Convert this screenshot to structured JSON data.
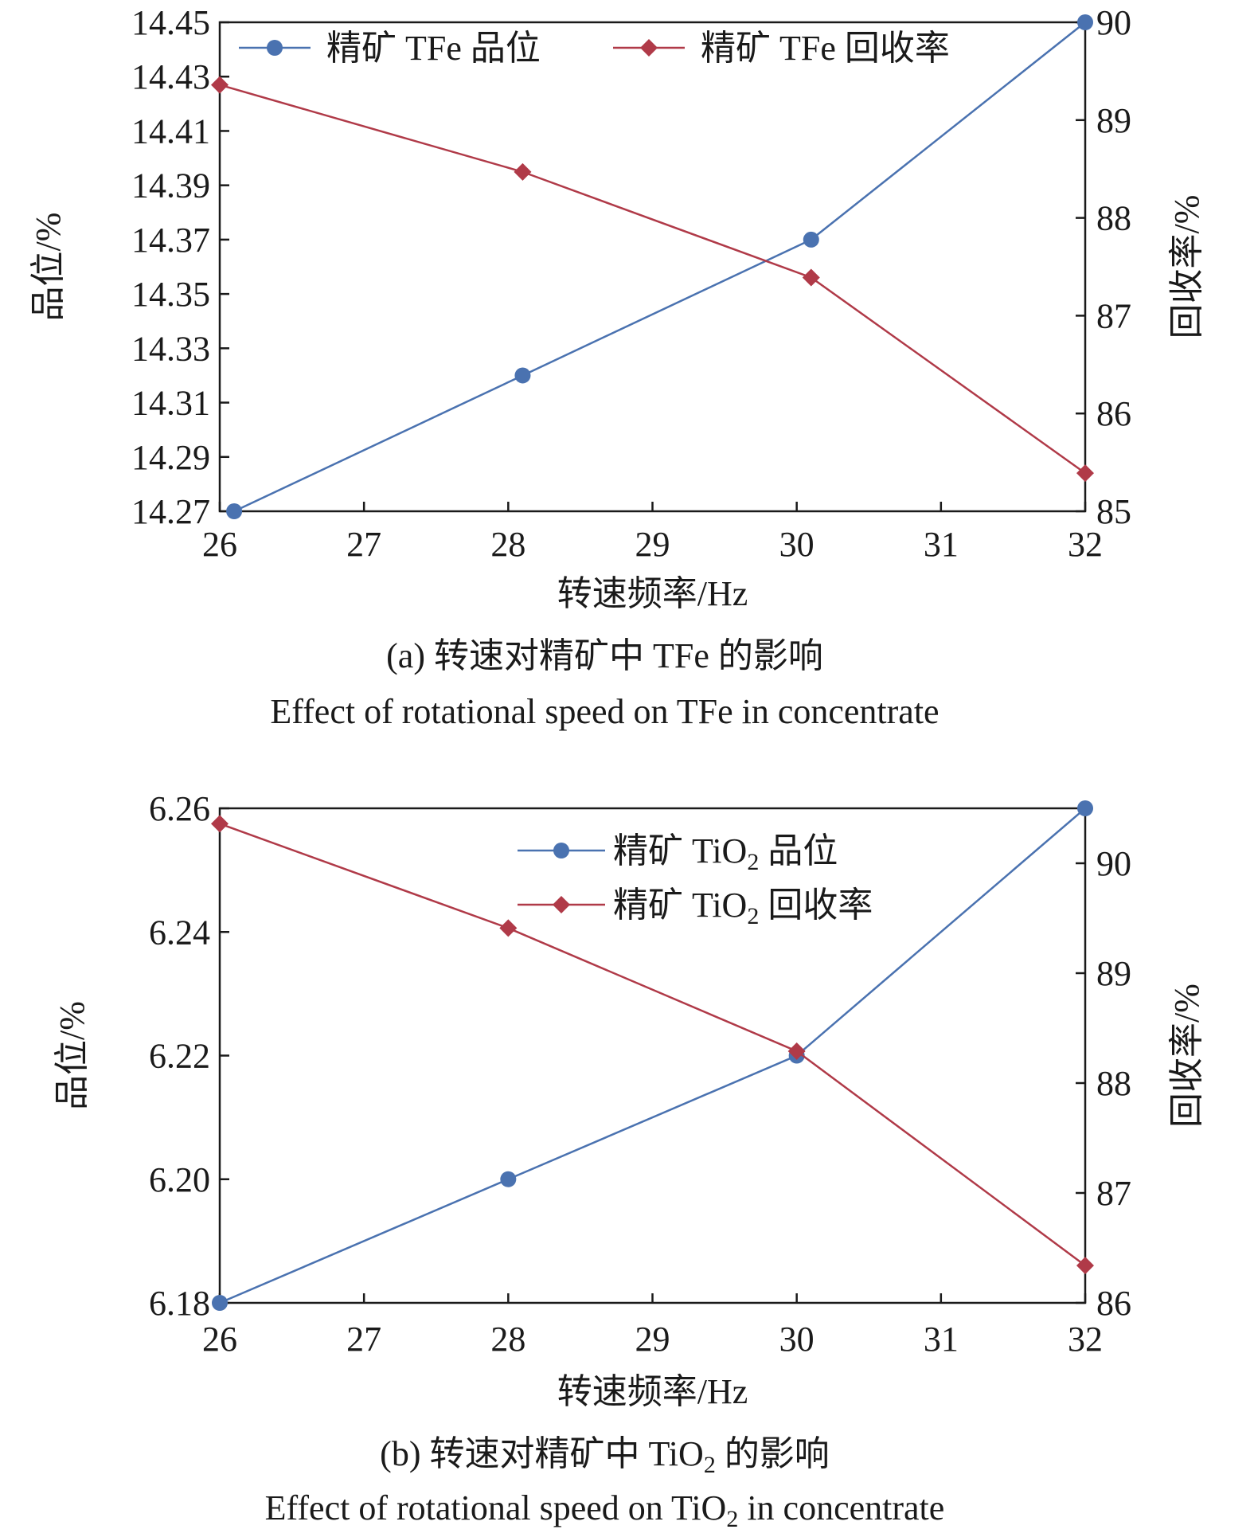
{
  "figure": {
    "panels": [
      {
        "caption_cn": "(a) 转速对精矿中 TFe 的影响",
        "caption_en": "Effect of rotational speed on TFe in concentrate"
      },
      {
        "caption_cn": "(b) 转速对精矿中 TiO₂ 的影响",
        "caption_en": "Effect of rotational speed on TiO₂ in concentrate"
      }
    ]
  },
  "chart_data": [
    {
      "type": "line",
      "x_axis_label": "转速频率/Hz",
      "y_left_label": "品位/%",
      "y_right_label": "回收率/%",
      "xlim": [
        26,
        32
      ],
      "x_ticks": [
        26,
        27,
        28,
        29,
        30,
        31,
        32
      ],
      "ylim_left": [
        14.27,
        14.45
      ],
      "y_left_ticks": [
        "14.27",
        "14.29",
        "14.31",
        "14.33",
        "14.35",
        "14.37",
        "14.39",
        "14.41",
        "14.43",
        "14.45"
      ],
      "ylim_right": [
        85,
        90
      ],
      "y_right_ticks": [
        "85",
        "86",
        "87",
        "88",
        "89",
        "90"
      ],
      "legend_position": "top",
      "series": [
        {
          "name": "精矿 TFe 品位",
          "axis": "left",
          "color": "#4a72b0",
          "marker": "circle",
          "points": [
            [
              26.1,
              14.27
            ],
            [
              28.1,
              14.32
            ],
            [
              30.1,
              14.37
            ],
            [
              32.0,
              14.45
            ]
          ]
        },
        {
          "name": "精矿 TFe 回收率",
          "axis": "right",
          "color": "#b03a48",
          "marker": "diamond",
          "points": [
            [
              26.0,
              89.36
            ],
            [
              28.1,
              88.47
            ],
            [
              30.1,
              87.39
            ],
            [
              32.0,
              85.39
            ]
          ]
        }
      ]
    },
    {
      "type": "line",
      "x_axis_label": "转速频率/Hz",
      "y_left_label": "品位/%",
      "y_right_label": "回收率/%",
      "xlim": [
        26,
        32
      ],
      "x_ticks": [
        26,
        27,
        28,
        29,
        30,
        31,
        32
      ],
      "ylim_left": [
        6.18,
        6.26
      ],
      "y_left_ticks": [
        "6.18",
        "6.20",
        "6.22",
        "6.24",
        "6.26"
      ],
      "ylim_right": [
        86,
        90.5
      ],
      "y_right_ticks": [
        "86",
        "87",
        "88",
        "89",
        "90"
      ],
      "legend_position": "top-right",
      "series": [
        {
          "name": "精矿 TiO₂ 品位",
          "axis": "left",
          "color": "#4a72b0",
          "marker": "circle",
          "points": [
            [
              26,
              6.18
            ],
            [
              28,
              6.2
            ],
            [
              30,
              6.22
            ],
            [
              32,
              6.26
            ]
          ]
        },
        {
          "name": "精矿 TiO₂ 回收率",
          "axis": "right",
          "color": "#b03a48",
          "marker": "diamond",
          "points": [
            [
              26,
              90.36
            ],
            [
              28,
              89.41
            ],
            [
              30,
              88.29
            ],
            [
              32,
              86.34
            ]
          ]
        }
      ]
    }
  ]
}
